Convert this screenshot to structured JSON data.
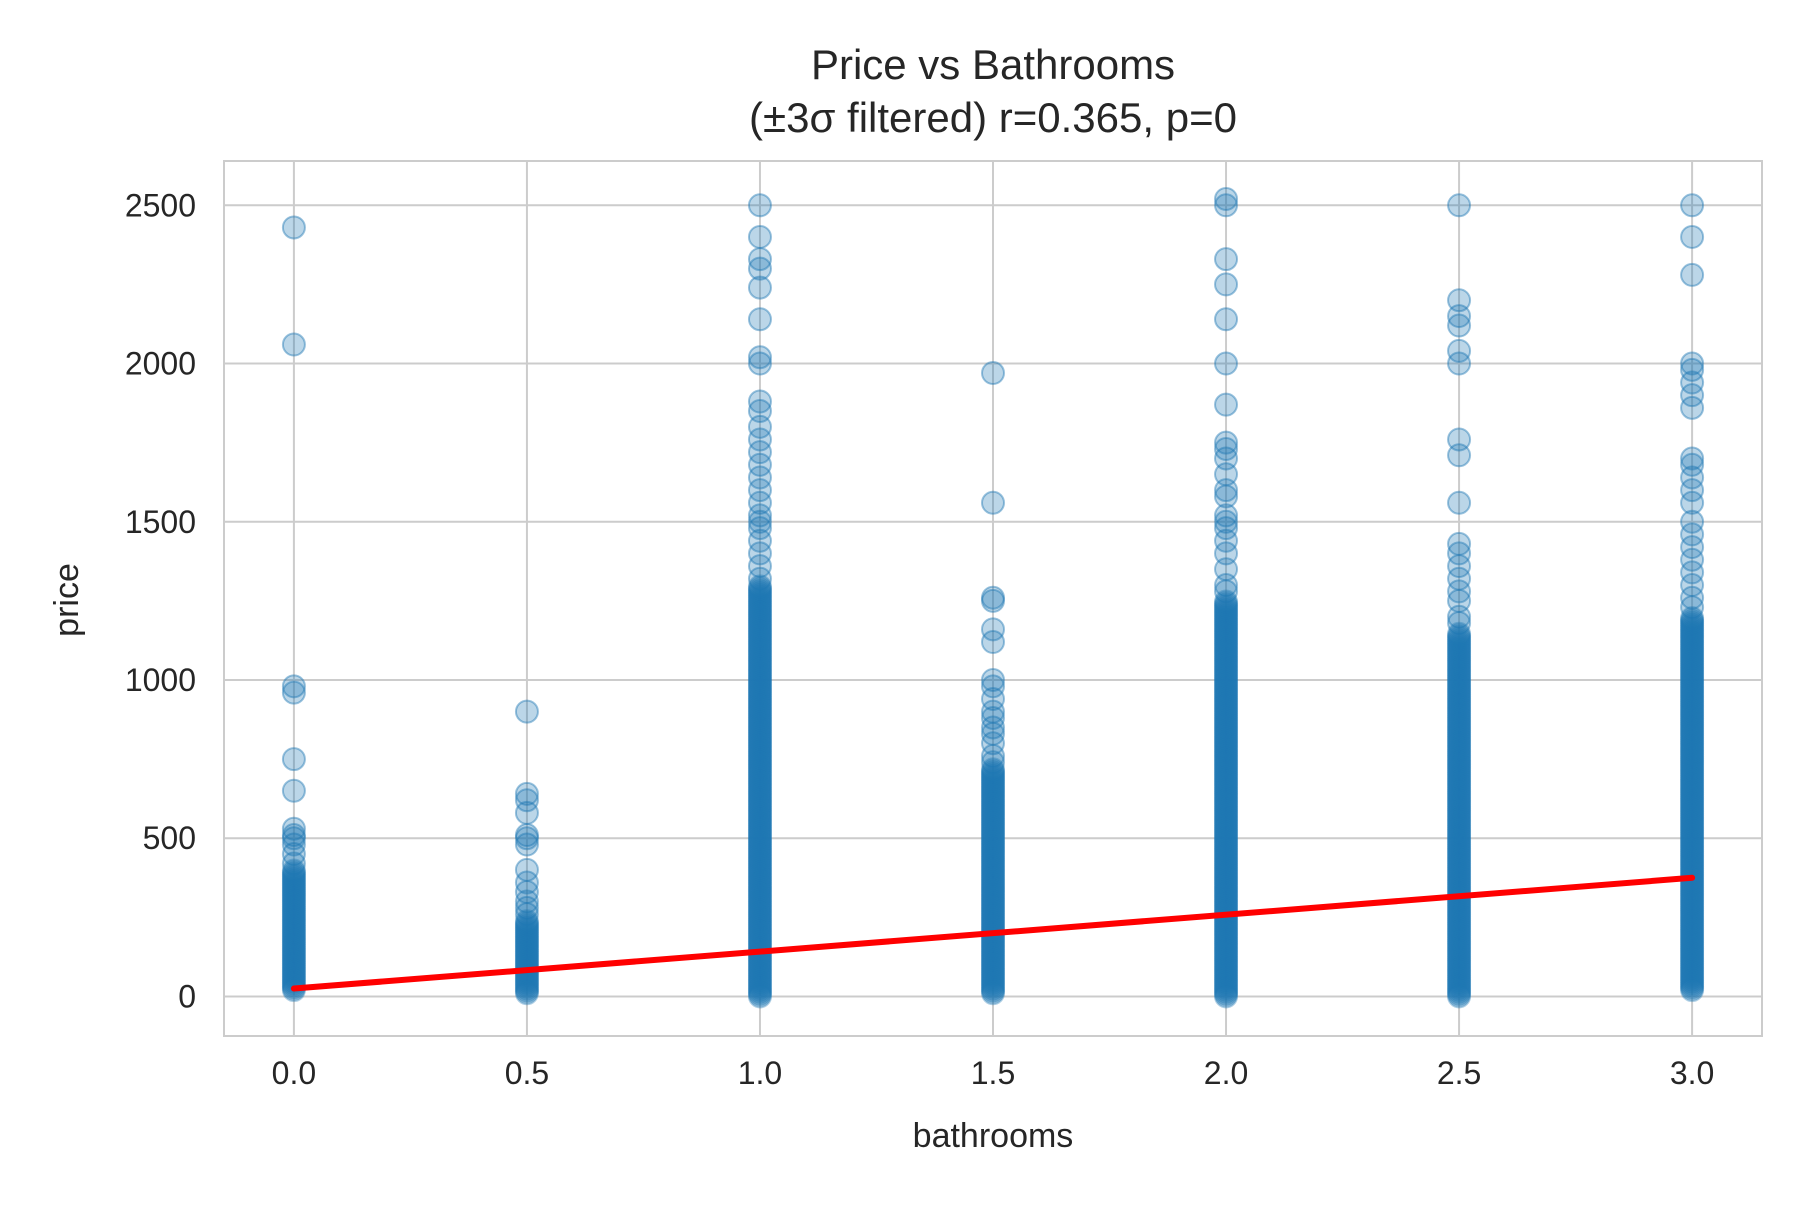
{
  "chart_data": {
    "type": "scatter",
    "title_line1": "Price vs Bathrooms",
    "title_line2": "(±3σ filtered) r=0.365, p=0",
    "xlabel": "bathrooms",
    "ylabel": "price",
    "xlim": [
      -0.15,
      3.15
    ],
    "ylim": [
      -125,
      2640
    ],
    "xticks": [
      0.0,
      0.5,
      1.0,
      1.5,
      2.0,
      2.5,
      3.0
    ],
    "xtick_labels": [
      "0.0",
      "0.5",
      "1.0",
      "1.5",
      "2.0",
      "2.5",
      "3.0"
    ],
    "yticks": [
      0,
      500,
      1000,
      1500,
      2000,
      2500
    ],
    "ytick_labels": [
      "0",
      "500",
      "1000",
      "1500",
      "2000",
      "2500"
    ],
    "grid": true,
    "point_color": "#1f77b4",
    "line_color": "#ff0000",
    "groups": [
      {
        "x": 0.0,
        "dense_range": [
          20,
          400
        ],
        "outliers": [
          420,
          450,
          480,
          500,
          510,
          530,
          650,
          750,
          960,
          980,
          2060,
          2430
        ]
      },
      {
        "x": 0.5,
        "dense_range": [
          10,
          240
        ],
        "outliers": [
          260,
          280,
          300,
          330,
          360,
          400,
          480,
          500,
          510,
          580,
          620,
          640,
          900
        ]
      },
      {
        "x": 1.0,
        "dense_range": [
          0,
          1300
        ],
        "outliers": [
          1320,
          1360,
          1400,
          1440,
          1480,
          1500,
          1520,
          1560,
          1600,
          1640,
          1680,
          1720,
          1760,
          1800,
          1850,
          1880,
          2000,
          2020,
          2140,
          2240,
          2300,
          2330,
          2400,
          2500
        ]
      },
      {
        "x": 1.5,
        "dense_range": [
          10,
          720
        ],
        "outliers": [
          740,
          760,
          800,
          830,
          850,
          880,
          900,
          940,
          980,
          1000,
          1120,
          1160,
          1250,
          1260,
          1560,
          1970
        ]
      },
      {
        "x": 2.0,
        "dense_range": [
          0,
          1250
        ],
        "outliers": [
          1280,
          1300,
          1350,
          1400,
          1440,
          1480,
          1500,
          1520,
          1580,
          1600,
          1650,
          1700,
          1730,
          1750,
          1870,
          2000,
          2140,
          2250,
          2330,
          2500,
          2520
        ]
      },
      {
        "x": 2.5,
        "dense_range": [
          0,
          1150
        ],
        "outliers": [
          1180,
          1200,
          1250,
          1280,
          1320,
          1360,
          1400,
          1430,
          1560,
          1710,
          1760,
          2000,
          2040,
          2120,
          2150,
          2200,
          2500
        ]
      },
      {
        "x": 3.0,
        "dense_range": [
          20,
          1200
        ],
        "outliers": [
          1230,
          1260,
          1300,
          1340,
          1380,
          1420,
          1460,
          1500,
          1560,
          1600,
          1640,
          1680,
          1700,
          1860,
          1900,
          1940,
          1980,
          2000,
          2280,
          2400,
          2500
        ]
      }
    ],
    "regression": {
      "x": [
        0.0,
        3.0
      ],
      "y": [
        25,
        375
      ]
    }
  }
}
